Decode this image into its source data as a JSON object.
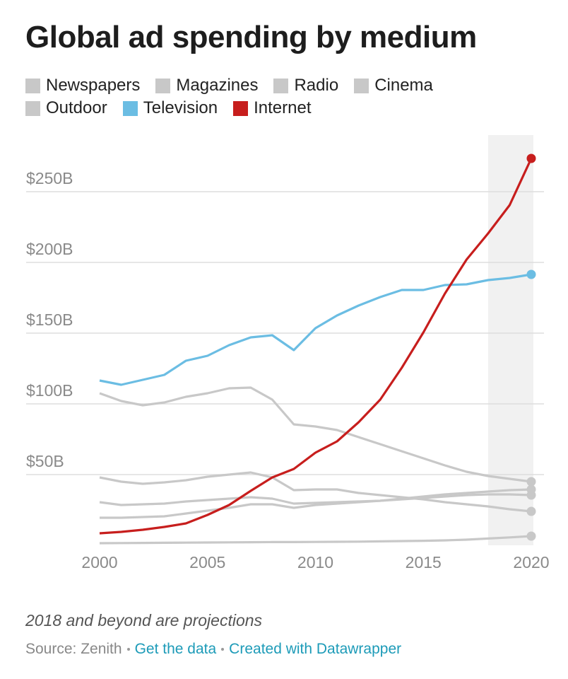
{
  "chart_data": {
    "type": "line",
    "title": "Global ad spending by medium",
    "x": [
      2000,
      2001,
      2002,
      2003,
      2004,
      2005,
      2006,
      2007,
      2008,
      2009,
      2010,
      2011,
      2012,
      2013,
      2014,
      2015,
      2016,
      2017,
      2018,
      2019,
      2020
    ],
    "series": [
      {
        "name": "Newspapers",
        "color": "#c8c8c8",
        "values": [
          107.5,
          102,
          99,
          101,
          105,
          107.5,
          111,
          111.5,
          103,
          85.5,
          84,
          81.5,
          76.5,
          71.5,
          66.5,
          61.5,
          56.5,
          52,
          49,
          47,
          45
        ]
      },
      {
        "name": "Magazines",
        "color": "#c8c8c8",
        "values": [
          48,
          45,
          43.5,
          44.5,
          46,
          48.5,
          50,
          51.5,
          48,
          39,
          39.5,
          39.5,
          37,
          35.5,
          34,
          32.5,
          30.5,
          29,
          27.5,
          25.5,
          24
        ]
      },
      {
        "name": "Radio",
        "color": "#c8c8c8",
        "values": [
          19.5,
          19.5,
          20,
          20.5,
          22.5,
          24.5,
          26.5,
          29,
          29,
          26.5,
          28.5,
          29.5,
          30.5,
          31.5,
          33,
          34.5,
          36,
          37,
          38,
          39,
          39.5
        ]
      },
      {
        "name": "Cinema",
        "color": "#c8c8c8",
        "values": [
          1.5,
          1.6,
          1.7,
          1.8,
          1.9,
          2,
          2.1,
          2.2,
          2.3,
          2.3,
          2.4,
          2.5,
          2.6,
          2.8,
          3,
          3.2,
          3.5,
          4,
          4.8,
          5.6,
          6.5
        ]
      },
      {
        "name": "Outdoor",
        "color": "#c8c8c8",
        "values": [
          30.5,
          28.5,
          29,
          29.5,
          31,
          32,
          33,
          34,
          33,
          29.5,
          30,
          30.5,
          31,
          31.5,
          32.5,
          33.5,
          34.5,
          35.5,
          36,
          36,
          35.5
        ]
      },
      {
        "name": "Television",
        "color": "#6bbde3",
        "values": [
          116.5,
          113.5,
          117,
          120.5,
          130.5,
          134,
          141.5,
          147,
          148.5,
          138,
          153.5,
          162.5,
          169.5,
          175.5,
          180.5,
          180.5,
          184,
          184.5,
          187.5,
          189,
          191.5
        ]
      },
      {
        "name": "Internet",
        "color": "#c71e1d",
        "values": [
          8.5,
          9.5,
          11,
          13,
          15.5,
          21.5,
          28.5,
          38.5,
          48,
          54,
          65.5,
          73.5,
          87,
          103,
          125.5,
          150.5,
          178,
          202,
          220.5,
          240.5,
          273.5
        ]
      }
    ],
    "xlim": [
      2000,
      2020
    ],
    "xticks": [
      2000,
      2005,
      2010,
      2015,
      2020
    ],
    "ylim": [
      0,
      290
    ],
    "yticks": [
      {
        "value": 50,
        "label": "$50B"
      },
      {
        "value": 100,
        "label": "$100B"
      },
      {
        "value": 150,
        "label": "$150B"
      },
      {
        "value": 200,
        "label": "$200B"
      },
      {
        "value": 250,
        "label": "$250B"
      }
    ],
    "grid": true,
    "projection_from": 2018,
    "note": "2018 and beyond are projections",
    "source": "Source: Zenith",
    "links": [
      "Get the data",
      "Created with Datawrapper"
    ]
  }
}
